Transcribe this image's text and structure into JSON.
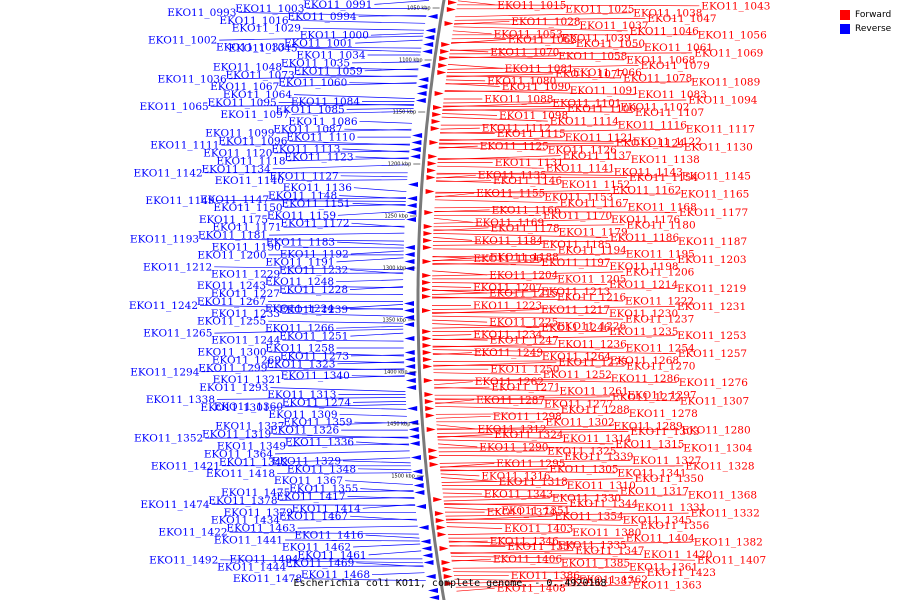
{
  "colors": {
    "forward": "#ff0000",
    "reverse": "#0000ff",
    "backbone": "#7a7a7a"
  },
  "legend": [
    {
      "label": "Forward",
      "color": "#ff0000"
    },
    {
      "label": "Reverse",
      "color": "#0000ff"
    }
  ],
  "caption": "Escherichia coli KO11, complete genome. - 0..4920168",
  "ticks": [
    "1050 kbp",
    "1100 kbp",
    "1150 kbp",
    "1200 kbp",
    "1250 kbp",
    "1300 kbp",
    "1350 kbp",
    "1400 kbp",
    "1450 kbp",
    "1500 kbp"
  ],
  "genes_left": [
    "EKO11_0991",
    "EKO11_1003",
    "EKO11_0993",
    "EKO11_0994",
    "EKO11_1016",
    "EKO11_1000",
    "EKO11_1029",
    "EKO11_1001",
    "EKO11_1033",
    "EKO11_1002",
    "EKO11_1034",
    "EKO11_1045",
    "EKO11_1035",
    "EKO11_1048",
    "EKO11_1059",
    "EKO11_1073",
    "EKO11_1036",
    "EKO11_1060",
    "EKO11_1067",
    "EKO11_1084",
    "EKO11_1064",
    "EKO11_1085",
    "EKO11_1095",
    "EKO11_1065",
    "EKO11_1086",
    "EKO11_1097",
    "EKO11_1087",
    "EKO11_1099",
    "EKO11_1110",
    "EKO11_1096",
    "EKO11_1111",
    "EKO11_1113",
    "EKO11_1120",
    "EKO11_1123",
    "EKO11_1118",
    "EKO11_1127",
    "EKO11_1134",
    "EKO11_1142",
    "EKO11_1136",
    "EKO11_1140",
    "EKO11_1148",
    "EKO11_1147",
    "EKO11_1151",
    "EKO11_1150",
    "EKO11_1149",
    "EKO11_1159",
    "EKO11_1175",
    "EKO11_1172",
    "EKO11_1171",
    "EKO11_1183",
    "EKO11_1181",
    "EKO11_1193",
    "EKO11_1192",
    "EKO11_1190",
    "EKO11_1191",
    "EKO11_1200",
    "EKO11_1232",
    "EKO11_1229",
    "EKO11_1212",
    "EKO11_1248",
    "EKO11_1243",
    "EKO11_1228",
    "EKO11_1227",
    "EKO11_1224",
    "EKO11_1267",
    "EKO11_1242",
    "EKO11_1239",
    "EKO11_1233",
    "EKO11_1266",
    "EKO11_1255",
    "EKO11_1251",
    "EKO11_1244",
    "EKO11_1265",
    "EKO11_1258",
    "EKO11_1300",
    "EKO11_1273",
    "EKO11_1269",
    "EKO11_1323",
    "EKO11_1299",
    "EKO11_1294",
    "EKO11_1340",
    "EKO11_1321",
    "EKO11_1313",
    "EKO11_1293",
    "EKO11_1274",
    "EKO11_1360",
    "EKO11_1338",
    "EKO11_1309",
    "EKO11_1301",
    "EKO11_1359",
    "EKO11_1337",
    "EKO11_1326",
    "EKO11_1319",
    "EKO11_1352",
    "EKO11_1336",
    "EKO11_1349",
    "EKO11_1329",
    "EKO11_1364",
    "EKO11_1348",
    "EKO11_1342",
    "EKO11_1421",
    "EKO11_1367",
    "EKO11_1418",
    "EKO11_1355",
    "EKO11_1475",
    "EKO11_1417",
    "EKO11_1378",
    "EKO11_1474",
    "EKO11_1414",
    "EKO11_1379",
    "EKO11_1467",
    "EKO11_1434",
    "EKO11_1416",
    "EKO11_1463",
    "EKO11_1422",
    "EKO11_1462",
    "EKO11_1441",
    "EKO11_1461",
    "EKO11_1494",
    "EKO11_1469",
    "EKO11_1444",
    "EKO11_1492",
    "EKO11_1468",
    "EKO11_1478"
  ],
  "genes_right": [
    "EKO11_1015",
    "EKO11_1025",
    "EKO11_1038",
    "EKO11_1043",
    "EKO11_1028",
    "EKO11_1037",
    "EKO11_1047",
    "EKO11_1053",
    "EKO11_1039",
    "EKO11_1046",
    "EKO11_1056",
    "EKO11_1062",
    "EKO11_1050",
    "EKO11_1061",
    "EKO11_1070",
    "EKO11_1058",
    "EKO11_1068",
    "EKO11_1069",
    "EKO11_1081",
    "EKO11_1066",
    "EKO11_1079",
    "EKO11_1080",
    "EKO11_1077",
    "EKO11_1078",
    "EKO11_1089",
    "EKO11_1090",
    "EKO11_1091",
    "EKO11_1083",
    "EKO11_1088",
    "EKO11_1101",
    "EKO11_1102",
    "EKO11_1094",
    "EKO11_1098",
    "EKO11_1100",
    "EKO11_1107",
    "EKO11_1112",
    "EKO11_1114",
    "EKO11_1116",
    "EKO11_1117",
    "EKO11_1115",
    "EKO11_1121",
    "EKO11_1122",
    "EKO11_1125",
    "EKO11_1126",
    "EKO11_1124",
    "EKO11_1130",
    "EKO11_1131",
    "EKO11_1137",
    "EKO11_1138",
    "EKO11_1135",
    "EKO11_1141",
    "EKO11_1143",
    "EKO11_1145",
    "EKO11_1146",
    "EKO11_1152",
    "EKO11_1154",
    "EKO11_1155",
    "EKO11_1153",
    "EKO11_1162",
    "EKO11_1165",
    "EKO11_1166",
    "EKO11_1167",
    "EKO11_1168",
    "EKO11_1169",
    "EKO11_1170",
    "EKO11_1176",
    "EKO11_1177",
    "EKO11_1178",
    "EKO11_1179",
    "EKO11_1180",
    "EKO11_1184",
    "EKO11_1185",
    "EKO11_1186",
    "EKO11_1187",
    "EKO11_1188",
    "EKO11_1194",
    "EKO11_1195",
    "EKO11_1196",
    "EKO11_1197",
    "EKO11_1198",
    "EKO11_1203",
    "EKO11_1204",
    "EKO11_1205",
    "EKO11_1206",
    "EKO11_1207",
    "EKO11_1213",
    "EKO11_1214",
    "EKO11_1219",
    "EKO11_1215",
    "EKO11_1216",
    "EKO11_1222",
    "EKO11_1223",
    "EKO11_1217",
    "EKO11_1230",
    "EKO11_1231",
    "EKO11_1225",
    "EKO11_1226",
    "EKO11_1237",
    "EKO11_1234",
    "EKO11_1246",
    "EKO11_1235",
    "EKO11_1253",
    "EKO11_1247",
    "EKO11_1236",
    "EKO11_1254",
    "EKO11_1249",
    "EKO11_1264",
    "EKO11_1268",
    "EKO11_1257",
    "EKO11_1250",
    "EKO11_1275",
    "EKO11_1270",
    "EKO11_1262",
    "EKO11_1252",
    "EKO11_1286",
    "EKO11_1276",
    "EKO11_1271",
    "EKO11_1261",
    "EKO11_1297",
    "EKO11_1287",
    "EKO11_1277",
    "EKO11_1272",
    "EKO11_1307",
    "EKO11_1298",
    "EKO11_1288",
    "EKO11_1278",
    "EKO11_1312",
    "EKO11_1302",
    "EKO11_1289",
    "EKO11_1280",
    "EKO11_1324",
    "EKO11_1314",
    "EKO11_1303",
    "EKO11_1290",
    "EKO11_1325",
    "EKO11_1315",
    "EKO11_1304",
    "EKO11_1295",
    "EKO11_1339",
    "EKO11_1327",
    "EKO11_1316",
    "EKO11_1305",
    "EKO11_1341",
    "EKO11_1328",
    "EKO11_1318",
    "EKO11_1310",
    "EKO11_1350",
    "EKO11_1343",
    "EKO11_1330",
    "EKO11_1317",
    "EKO11_1368",
    "EKO11_1351",
    "EKO11_1344",
    "EKO11_1331",
    "EKO11_1374",
    "EKO11_1354",
    "EKO11_1345",
    "EKO11_1332",
    "EKO11_1403",
    "EKO11_1380",
    "EKO11_1356",
    "EKO11_1346",
    "EKO11_1335",
    "EKO11_1404",
    "EKO11_1382",
    "EKO11_1357",
    "EKO11_1347",
    "EKO11_1420",
    "EKO11_1406",
    "EKO11_1385",
    "EKO11_1361",
    "EKO11_1407",
    "EKO11_1386",
    "EKO11_1362",
    "EKO11_1423",
    "EKO11_1408",
    "EKO11_1387",
    "EKO11_1363"
  ]
}
